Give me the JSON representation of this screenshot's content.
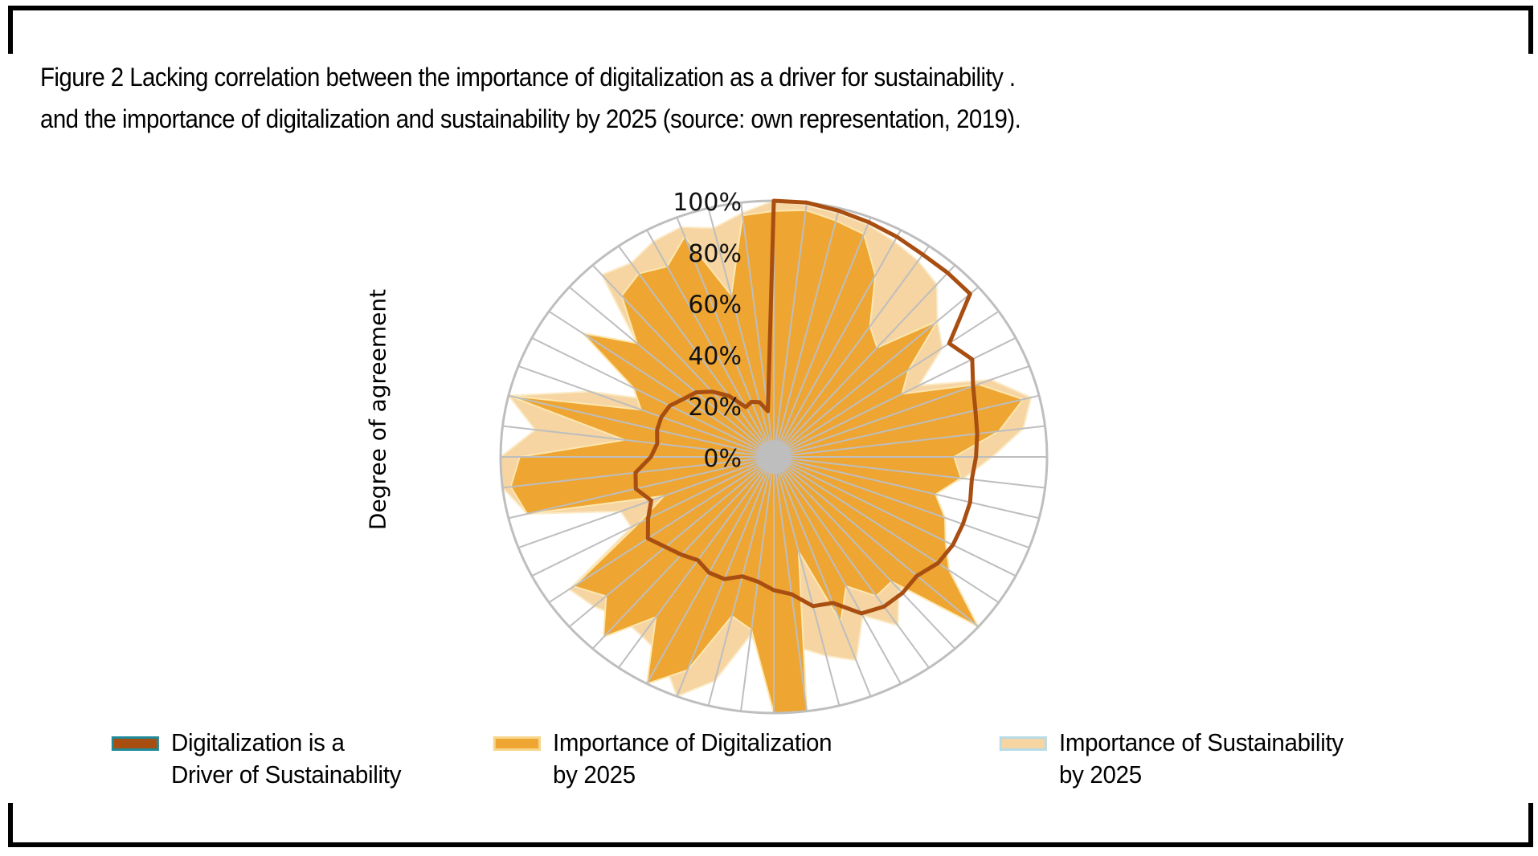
{
  "title": {
    "line1": "Figure 2 Lacking correlation between the importance of digitalization as a driver for sustainability .",
    "line2": "and the importance of digitalization and sustainability by 2025 (source: own representation, 2019)."
  },
  "colors": {
    "driver": "#A94E11",
    "driver_legend_border": "#1F8A9A",
    "digitalization": "#EEA532",
    "digitalization_legend_border": "#F6D68A",
    "sustainability": "#F6D5A2",
    "sustainability_legend_border": "#B7DCE6",
    "grid": "#BEBEBE",
    "center": "#BEBEBE"
  },
  "legend": [
    {
      "line1": "Digitalization  is a",
      "line2": "Driver of Sustainability"
    },
    {
      "line1": "Importance of Digitalization",
      "line2": "by 2025"
    },
    {
      "line1": "Importance of Sustainability",
      "line2": "by 2025"
    }
  ],
  "chart_data": {
    "type": "radar",
    "title": "Figure 2 Lacking correlation between the importance of digitalization as a driver for sustainability . and the importance of digitalization and sustainability by 2025 (source: own representation, 2019).",
    "ylabel": "Degree of agreement",
    "radial_ticks": [
      "0%",
      "20%",
      "40%",
      "60%",
      "80%",
      "100%"
    ],
    "rlim": [
      0,
      100
    ],
    "grid": true,
    "legend_position": "bottom",
    "n_axes": 52,
    "start": "top",
    "direction": "clockwise",
    "series": [
      {
        "name": "Digitalization is a Driver of Sustainability",
        "style": "line",
        "values": [
          100,
          100,
          99,
          98,
          97,
          96,
          96,
          96,
          78,
          82,
          78,
          76,
          75,
          74,
          73,
          74,
          74,
          74,
          73,
          70,
          71,
          71,
          69,
          61,
          60,
          54,
          52,
          49,
          48,
          51,
          51,
          49,
          51,
          53,
          56,
          52,
          48,
          52,
          51,
          45,
          43,
          44,
          44,
          43,
          40,
          38,
          34,
          29,
          22,
          23,
          22,
          18
        ]
      },
      {
        "name": "Importance of Digitalization by 2025",
        "style": "filled",
        "values": [
          96,
          97,
          95,
          93,
          80,
          62,
          57,
          80,
          60,
          53,
          80,
          94,
          83,
          66,
          69,
          61,
          67,
          71,
          78,
          100,
          65,
          66,
          57,
          69,
          38,
          100,
          100,
          68,
          64,
          89,
          100,
          76,
          94,
          82,
          89,
          56,
          43,
          93,
          97,
          93,
          55,
          100,
          52,
          58,
          85,
          67,
          84,
          87,
          84,
          92,
          65,
          95
        ]
      },
      {
        "name": "Importance of Sustainability by 2025",
        "style": "filled",
        "values": [
          100,
          99,
          98,
          97,
          95,
          93,
          90,
          80,
          75,
          60,
          85,
          97,
          92,
          80,
          70,
          58,
          62,
          40,
          50,
          76,
          69,
          80,
          70,
          85,
          80,
          75,
          86,
          70,
          90,
          100,
          88,
          85,
          84,
          88,
          91,
          59,
          60,
          93,
          100,
          100,
          88,
          100,
          72,
          47,
          85,
          67,
          95,
          92,
          95,
          96,
          92,
          96
        ]
      }
    ]
  }
}
